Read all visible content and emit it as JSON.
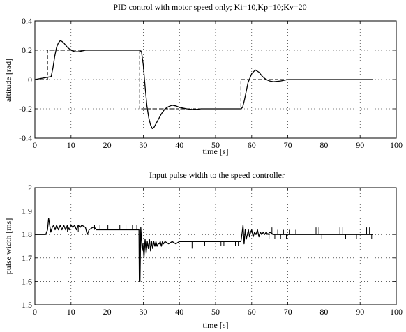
{
  "chart_data": [
    {
      "type": "line",
      "title": "PID control with motor speed only; Ki=10,Kp=10;Kv=20",
      "xlabel": "time [s]",
      "ylabel": "altitude [rad]",
      "xlim": [
        0,
        100
      ],
      "ylim": [
        -0.4,
        0.4
      ],
      "xticks": [
        "0",
        "10",
        "20",
        "30",
        "40",
        "50",
        "60",
        "70",
        "80",
        "90",
        "100"
      ],
      "yticks": [
        "-0.4",
        "-0.2",
        "0",
        "0.2",
        "0.4"
      ],
      "grid": true,
      "series": [
        {
          "style": "dashed",
          "x": [
            0,
            3.5,
            3.5,
            29,
            29,
            57,
            57,
            93.5
          ],
          "y": [
            0,
            0,
            0.2,
            0.2,
            -0.2,
            -0.2,
            0,
            0
          ]
        },
        {
          "style": "solid",
          "x": [
            0,
            4.5,
            5,
            5.5,
            6,
            6.5,
            7,
            7.5,
            8,
            8.5,
            9,
            10,
            11,
            12,
            13,
            14,
            16,
            18,
            20,
            22,
            24,
            26,
            28,
            29,
            29.5,
            30,
            30.5,
            31,
            31.5,
            32,
            32.5,
            33,
            34,
            35,
            36,
            37,
            38,
            39,
            40,
            42,
            44,
            46,
            48,
            50,
            52,
            54,
            56,
            57,
            57.5,
            58,
            58.5,
            59,
            60,
            61,
            62,
            63,
            64,
            65,
            66,
            68,
            70,
            75,
            80,
            85,
            90,
            93.5
          ],
          "y": [
            0,
            0.02,
            0.08,
            0.16,
            0.22,
            0.25,
            0.265,
            0.26,
            0.25,
            0.235,
            0.22,
            0.2,
            0.19,
            0.19,
            0.195,
            0.2,
            0.2,
            0.2,
            0.2,
            0.2,
            0.2,
            0.2,
            0.2,
            0.2,
            0.19,
            0.1,
            -0.05,
            -0.18,
            -0.26,
            -0.31,
            -0.335,
            -0.325,
            -0.28,
            -0.235,
            -0.2,
            -0.185,
            -0.175,
            -0.18,
            -0.19,
            -0.2,
            -0.205,
            -0.2,
            -0.2,
            -0.2,
            -0.2,
            -0.2,
            -0.2,
            -0.2,
            -0.19,
            -0.14,
            -0.08,
            -0.02,
            0.04,
            0.065,
            0.05,
            0.02,
            0.0,
            -0.01,
            -0.015,
            -0.01,
            0.0,
            0.0,
            0.0,
            0.0,
            0.0,
            0.0
          ]
        }
      ]
    },
    {
      "type": "line",
      "title": "Input pulse width to the speed controller",
      "xlabel": "time [s]",
      "ylabel": "pulse width [ms]",
      "xlim": [
        0,
        100
      ],
      "ylim": [
        1.5,
        2.0
      ],
      "xticks": [
        "0",
        "10",
        "20",
        "30",
        "40",
        "50",
        "60",
        "70",
        "80",
        "90",
        "100"
      ],
      "yticks": [
        "1.5",
        "1.6",
        "1.7",
        "1.8",
        "1.9",
        "2"
      ],
      "grid": true,
      "series": [
        {
          "style": "solid",
          "x": [
            0,
            3,
            3.5,
            3.8,
            4.1,
            4.4,
            4.8,
            5.2,
            5.6,
            6.0,
            6.5,
            7.0,
            7.5,
            8.0,
            8.5,
            9.0,
            9.5,
            10.0,
            10.5,
            11.0,
            11.5,
            12.0,
            12.5,
            13.0,
            14,
            14.5,
            15,
            16,
            16.5,
            17,
            18,
            19,
            20,
            21,
            22,
            23,
            24,
            25,
            26,
            27,
            28,
            28.8,
            28.9,
            29.1,
            29.3,
            29.5,
            29.7,
            29.9,
            30.2,
            30.5,
            30.8,
            31.1,
            31.4,
            31.7,
            32.0,
            32.3,
            32.6,
            32.9,
            33.2,
            33.5,
            33.8,
            34.1,
            34.4,
            34.7,
            35.0,
            35.3,
            35.6,
            36,
            37,
            38,
            39,
            40,
            42,
            44,
            46,
            48,
            50,
            52,
            54,
            56,
            57,
            57.3,
            57.6,
            57.9,
            58.2,
            58.5,
            58.8,
            59.1,
            59.4,
            59.7,
            60.0,
            60.4,
            60.8,
            61.2,
            61.6,
            62.0,
            62.4,
            62.8,
            63.2,
            63.6,
            64.0,
            64.5,
            65,
            66,
            67,
            68,
            70,
            72,
            74,
            76,
            78,
            80,
            82,
            84,
            86,
            88,
            90,
            92,
            93.5
          ],
          "y": [
            1.8,
            1.8,
            1.82,
            1.87,
            1.84,
            1.81,
            1.83,
            1.84,
            1.82,
            1.84,
            1.82,
            1.84,
            1.82,
            1.84,
            1.82,
            1.84,
            1.82,
            1.84,
            1.83,
            1.84,
            1.82,
            1.84,
            1.83,
            1.84,
            1.83,
            1.8,
            1.82,
            1.83,
            1.83,
            1.82,
            1.82,
            1.82,
            1.82,
            1.82,
            1.82,
            1.82,
            1.82,
            1.82,
            1.82,
            1.82,
            1.82,
            1.82,
            1.6,
            1.6,
            1.83,
            1.78,
            1.73,
            1.76,
            1.7,
            1.78,
            1.72,
            1.77,
            1.74,
            1.78,
            1.73,
            1.77,
            1.74,
            1.77,
            1.75,
            1.77,
            1.75,
            1.76,
            1.76,
            1.77,
            1.75,
            1.77,
            1.76,
            1.77,
            1.76,
            1.77,
            1.76,
            1.77,
            1.77,
            1.77,
            1.77,
            1.77,
            1.77,
            1.77,
            1.77,
            1.77,
            1.77,
            1.8,
            1.84,
            1.76,
            1.82,
            1.78,
            1.8,
            1.82,
            1.79,
            1.81,
            1.82,
            1.79,
            1.81,
            1.8,
            1.82,
            1.79,
            1.81,
            1.8,
            1.81,
            1.8,
            1.81,
            1.8,
            1.81,
            1.8,
            1.8,
            1.8,
            1.8,
            1.8,
            1.8,
            1.8,
            1.8,
            1.8,
            1.8,
            1.8,
            1.8,
            1.8,
            1.8,
            1.8,
            1.8
          ]
        }
      ],
      "spikes": [
        {
          "x": 9,
          "y1": 1.81,
          "y2": 1.84
        },
        {
          "x": 12,
          "y1": 1.81,
          "y2": 1.84
        },
        {
          "x": 16.5,
          "y1": 1.82,
          "y2": 1.84
        },
        {
          "x": 18,
          "y1": 1.82,
          "y2": 1.84
        },
        {
          "x": 20.2,
          "y1": 1.82,
          "y2": 1.84
        },
        {
          "x": 23.5,
          "y1": 1.82,
          "y2": 1.84
        },
        {
          "x": 25.2,
          "y1": 1.82,
          "y2": 1.84
        },
        {
          "x": 27,
          "y1": 1.82,
          "y2": 1.84
        },
        {
          "x": 28.2,
          "y1": 1.82,
          "y2": 1.84
        },
        {
          "x": 43.5,
          "y1": 1.77,
          "y2": 1.74
        },
        {
          "x": 47,
          "y1": 1.77,
          "y2": 1.75
        },
        {
          "x": 51.5,
          "y1": 1.77,
          "y2": 1.75
        },
        {
          "x": 52.3,
          "y1": 1.77,
          "y2": 1.75
        },
        {
          "x": 55.5,
          "y1": 1.77,
          "y2": 1.75
        },
        {
          "x": 56.3,
          "y1": 1.77,
          "y2": 1.75
        },
        {
          "x": 64.8,
          "y1": 1.8,
          "y2": 1.78
        },
        {
          "x": 65.6,
          "y1": 1.8,
          "y2": 1.83
        },
        {
          "x": 66.4,
          "y1": 1.8,
          "y2": 1.78
        },
        {
          "x": 67.2,
          "y1": 1.8,
          "y2": 1.82
        },
        {
          "x": 68.0,
          "y1": 1.8,
          "y2": 1.78
        },
        {
          "x": 68.8,
          "y1": 1.8,
          "y2": 1.82
        },
        {
          "x": 69.6,
          "y1": 1.8,
          "y2": 1.78
        },
        {
          "x": 70.4,
          "y1": 1.8,
          "y2": 1.82
        },
        {
          "x": 72.2,
          "y1": 1.8,
          "y2": 1.82
        },
        {
          "x": 77.8,
          "y1": 1.8,
          "y2": 1.83
        },
        {
          "x": 78.6,
          "y1": 1.8,
          "y2": 1.83
        },
        {
          "x": 79.4,
          "y1": 1.8,
          "y2": 1.78
        },
        {
          "x": 84.4,
          "y1": 1.8,
          "y2": 1.83
        },
        {
          "x": 85.2,
          "y1": 1.8,
          "y2": 1.83
        },
        {
          "x": 86.0,
          "y1": 1.8,
          "y2": 1.78
        },
        {
          "x": 89,
          "y1": 1.8,
          "y2": 1.78
        },
        {
          "x": 91.8,
          "y1": 1.8,
          "y2": 1.83
        },
        {
          "x": 92.6,
          "y1": 1.8,
          "y2": 1.83
        },
        {
          "x": 93.2,
          "y1": 1.8,
          "y2": 1.78
        }
      ]
    }
  ]
}
